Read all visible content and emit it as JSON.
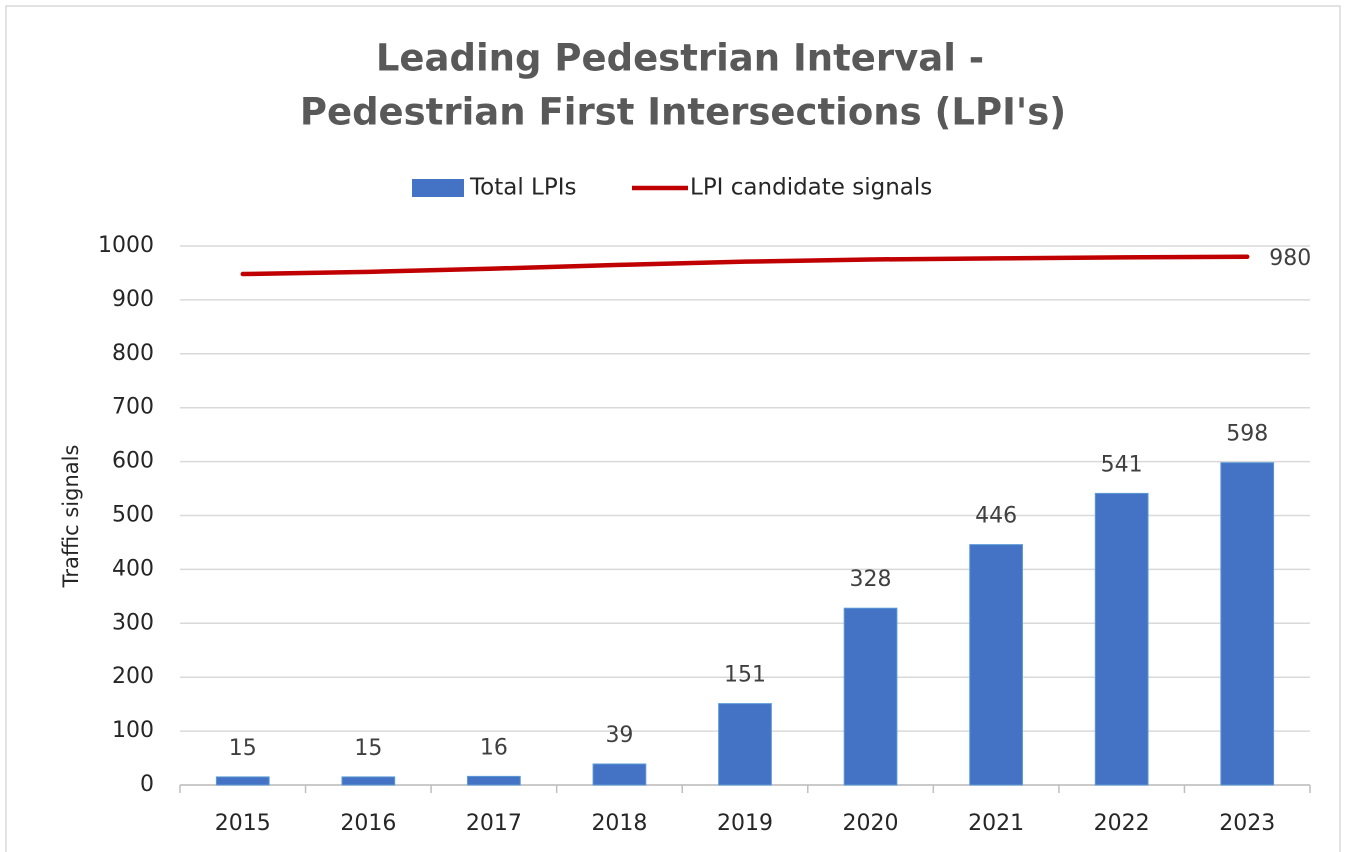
{
  "chart_data": {
    "type": "bar",
    "title": [
      "Leading Pedestrian Interval -",
      "Pedestrian First Intersections (LPI's)"
    ],
    "ylabel": "Traffic signals",
    "categories": [
      "2015",
      "2016",
      "2017",
      "2018",
      "2019",
      "2020",
      "2021",
      "2022",
      "2023"
    ],
    "series": [
      {
        "name": "Total LPIs",
        "type": "bar",
        "color": "#4472c4",
        "data_labels": "all",
        "values": [
          15,
          15,
          16,
          39,
          151,
          328,
          446,
          541,
          598
        ]
      },
      {
        "name": "LPI candidate signals",
        "type": "line",
        "color": "#c00000",
        "data_labels": "last",
        "values": [
          948,
          952,
          958,
          965,
          971,
          975,
          977,
          979,
          980
        ]
      }
    ],
    "ylim": [
      0,
      1000
    ],
    "yticks": [
      0,
      100,
      200,
      300,
      400,
      500,
      600,
      700,
      800,
      900,
      1000
    ],
    "grid": true,
    "legend": "top"
  }
}
